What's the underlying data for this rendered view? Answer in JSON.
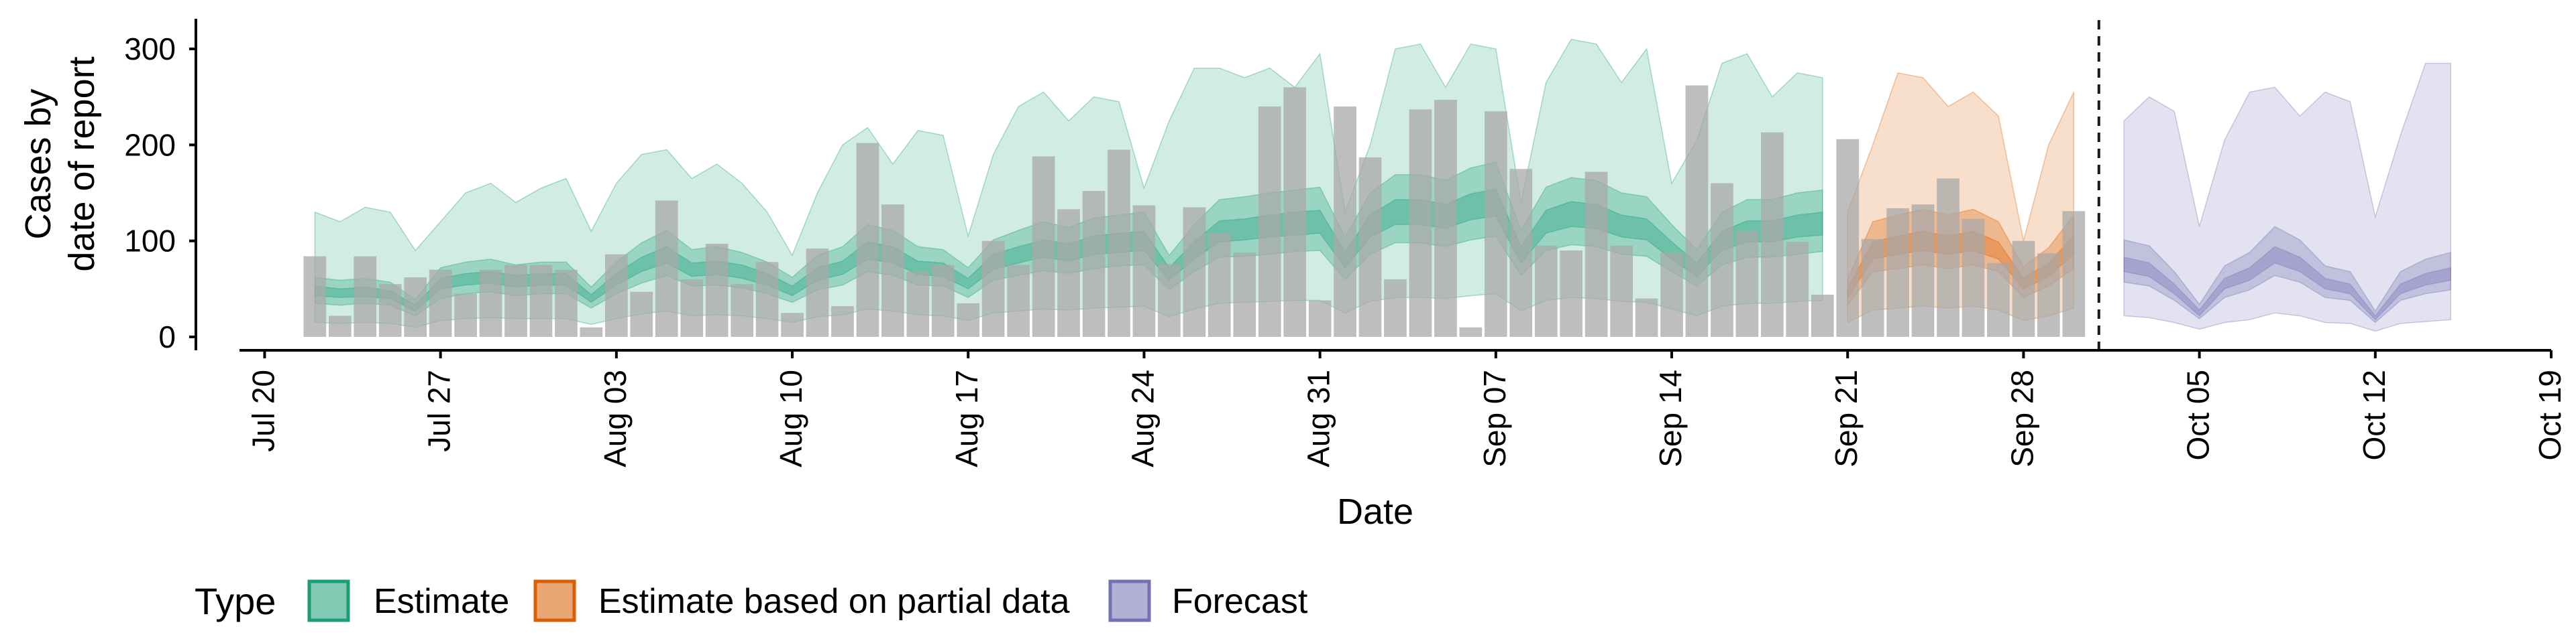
{
  "chart_data": {
    "type": "area",
    "title": "",
    "xlabel": "Date",
    "ylabel": [
      "Cases by",
      "date of report"
    ],
    "ylim": [
      0,
      330
    ],
    "y_ticks": [
      0,
      100,
      200,
      300
    ],
    "xlim": [
      "2020-07-19",
      "2020-10-19"
    ],
    "x_ticks": [
      "2020-07-20",
      "2020-07-27",
      "2020-08-03",
      "2020-08-10",
      "2020-08-17",
      "2020-08-24",
      "2020-08-31",
      "2020-09-07",
      "2020-09-14",
      "2020-09-21",
      "2020-09-28",
      "2020-10-05",
      "2020-10-12",
      "2020-10-19"
    ],
    "x_tick_labels": [
      "Jul 20",
      "Jul 27",
      "Aug 03",
      "Aug 10",
      "Aug 17",
      "Aug 24",
      "Aug 31",
      "Sep 07",
      "Sep 14",
      "Sep 21",
      "Sep 28",
      "Oct 05",
      "Oct 12",
      "Oct 19"
    ],
    "start_date": "2020-07-22",
    "vline_date": "2020-10-01",
    "grid": false,
    "legend": {
      "title": "Type",
      "position": "bottom-left",
      "entries": [
        {
          "label": "Estimate",
          "color": "#1b9e77"
        },
        {
          "label": "Estimate based on partial data",
          "color": "#d95f02"
        },
        {
          "label": "Forecast",
          "color": "#7570b3"
        }
      ]
    },
    "colors": {
      "Estimate": "#1b9e77",
      "Estimate based on partial data": "#d95f02",
      "Forecast": "#7570b3",
      "bars": "#a8a8a8",
      "vline": "#1a1a1a"
    },
    "reported_cases": [
      84,
      22,
      84,
      55,
      62,
      70,
      45,
      70,
      75,
      75,
      70,
      10,
      86,
      47,
      142,
      60,
      97,
      55,
      78,
      25,
      92,
      32,
      202,
      138,
      68,
      75,
      35,
      100,
      75,
      188,
      133,
      152,
      195,
      137,
      76,
      135,
      108,
      88,
      240,
      260,
      38,
      240,
      187,
      60,
      237,
      247,
      10,
      235,
      175,
      95,
      90,
      172,
      95,
      40,
      88,
      262,
      160,
      110,
      213,
      99,
      44,
      206,
      102,
      134,
      138,
      165,
      123,
      77,
      100,
      87,
      131
    ],
    "estimate_dates_count": 61,
    "partial_dates_count": 10,
    "series": [
      {
        "name": "Estimate",
        "start": 0,
        "median": [
          48,
          45,
          47,
          44,
          30,
          55,
          60,
          62,
          58,
          60,
          60,
          40,
          60,
          75,
          85,
          70,
          72,
          68,
          60,
          48,
          65,
          72,
          90,
          85,
          72,
          70,
          55,
          78,
          85,
          92,
          88,
          95,
          98,
          100,
          65,
          90,
          110,
          112,
          115,
          118,
          120,
          80,
          115,
          130,
          130,
          125,
          135,
          140,
          85,
          120,
          128,
          125,
          115,
          112,
          90,
          70,
          100,
          110,
          110,
          115,
          118
        ],
        "lower90": [
          15,
          14,
          15,
          14,
          10,
          17,
          19,
          20,
          19,
          19,
          19,
          13,
          19,
          24,
          27,
          22,
          23,
          22,
          19,
          15,
          21,
          23,
          29,
          27,
          23,
          22,
          17,
          25,
          27,
          29,
          28,
          30,
          31,
          32,
          21,
          29,
          35,
          36,
          37,
          38,
          38,
          25,
          37,
          41,
          41,
          40,
          43,
          45,
          27,
          38,
          41,
          40,
          37,
          36,
          29,
          22,
          32,
          35,
          35,
          37,
          38
        ],
        "upper90": [
          130,
          120,
          135,
          130,
          90,
          120,
          150,
          160,
          140,
          155,
          165,
          110,
          160,
          190,
          195,
          165,
          180,
          160,
          130,
          85,
          150,
          200,
          218,
          180,
          215,
          210,
          105,
          190,
          240,
          255,
          225,
          250,
          245,
          155,
          225,
          280,
          280,
          270,
          280,
          260,
          295,
          130,
          200,
          300,
          305,
          260,
          305,
          300,
          140,
          265,
          310,
          305,
          265,
          300,
          160,
          205,
          285,
          295,
          250,
          275,
          270
        ],
        "lower50": [
          35,
          33,
          35,
          33,
          22,
          40,
          45,
          47,
          43,
          45,
          45,
          30,
          45,
          56,
          64,
          53,
          54,
          51,
          45,
          36,
          49,
          54,
          68,
          64,
          54,
          53,
          41,
          59,
          64,
          69,
          66,
          71,
          74,
          75,
          49,
          68,
          83,
          84,
          86,
          89,
          90,
          60,
          86,
          98,
          98,
          94,
          101,
          105,
          64,
          90,
          96,
          94,
          86,
          84,
          68,
          53,
          75,
          83,
          83,
          86,
          89
        ],
        "upper50": [
          62,
          59,
          61,
          57,
          39,
          72,
          78,
          81,
          75,
          78,
          78,
          52,
          78,
          98,
          111,
          91,
          94,
          88,
          78,
          62,
          85,
          94,
          117,
          111,
          94,
          91,
          72,
          101,
          111,
          120,
          114,
          124,
          127,
          130,
          85,
          117,
          143,
          146,
          150,
          153,
          156,
          104,
          150,
          169,
          169,
          163,
          176,
          182,
          111,
          156,
          166,
          163,
          150,
          146,
          117,
          91,
          130,
          143,
          143,
          150,
          153
        ],
        "lower20": [
          43,
          41,
          42,
          40,
          27,
          50,
          54,
          56,
          52,
          54,
          54,
          36,
          54,
          68,
          77,
          63,
          65,
          61,
          54,
          43,
          59,
          65,
          81,
          77,
          65,
          63,
          50,
          70,
          77,
          83,
          79,
          86,
          88,
          90,
          59,
          81,
          99,
          101,
          104,
          106,
          108,
          72,
          104,
          117,
          117,
          113,
          122,
          126,
          77,
          108,
          115,
          113,
          104,
          101,
          81,
          63,
          90,
          99,
          99,
          104,
          106
        ],
        "upper20": [
          53,
          50,
          52,
          48,
          33,
          61,
          66,
          68,
          64,
          66,
          66,
          44,
          66,
          83,
          94,
          77,
          79,
          75,
          66,
          53,
          72,
          79,
          99,
          94,
          79,
          77,
          61,
          86,
          94,
          101,
          97,
          105,
          108,
          110,
          72,
          99,
          121,
          123,
          127,
          130,
          132,
          88,
          127,
          143,
          143,
          138,
          149,
          154,
          94,
          132,
          141,
          138,
          127,
          123,
          99,
          77,
          110,
          121,
          121,
          127,
          130
        ]
      },
      {
        "name": "Estimate based on partial data",
        "start": 61,
        "median": [
          45,
          90,
          95,
          100,
          95,
          100,
          90,
          55,
          70,
          95
        ],
        "lower90": [
          15,
          28,
          30,
          32,
          30,
          32,
          28,
          17,
          22,
          30
        ],
        "upper90": [
          130,
          200,
          275,
          270,
          240,
          255,
          230,
          100,
          200,
          255
        ],
        "lower50": [
          33,
          68,
          71,
          75,
          71,
          75,
          68,
          41,
          53,
          71
        ],
        "upper50": [
          60,
          120,
          127,
          133,
          127,
          133,
          120,
          73,
          93,
          127
        ],
        "lower20": [
          41,
          81,
          86,
          90,
          86,
          90,
          81,
          50,
          63,
          86
        ],
        "upper20": [
          50,
          99,
          105,
          110,
          105,
          110,
          99,
          61,
          77,
          105
        ]
      },
      {
        "name": "Forecast",
        "start": 72,
        "median": [
          75,
          70,
          50,
          25,
          55,
          65,
          85,
          75,
          55,
          50,
          20,
          50,
          60,
          65
        ],
        "lower90": [
          22,
          20,
          15,
          8,
          15,
          18,
          25,
          22,
          15,
          14,
          6,
          14,
          16,
          18
        ],
        "upper90": [
          225,
          250,
          235,
          115,
          205,
          255,
          260,
          230,
          255,
          245,
          125,
          210,
          285,
          285
        ],
        "lower50": [
          57,
          53,
          38,
          19,
          41,
          49,
          64,
          57,
          41,
          38,
          15,
          38,
          45,
          49
        ],
        "upper50": [
          101,
          95,
          68,
          34,
          74,
          88,
          115,
          101,
          74,
          68,
          27,
          68,
          81,
          88
        ],
        "lower20": [
          68,
          63,
          45,
          22,
          50,
          59,
          77,
          68,
          50,
          45,
          18,
          45,
          54,
          59
        ],
        "upper20": [
          83,
          77,
          55,
          28,
          61,
          72,
          94,
          83,
          61,
          55,
          22,
          55,
          66,
          72
        ]
      }
    ]
  }
}
